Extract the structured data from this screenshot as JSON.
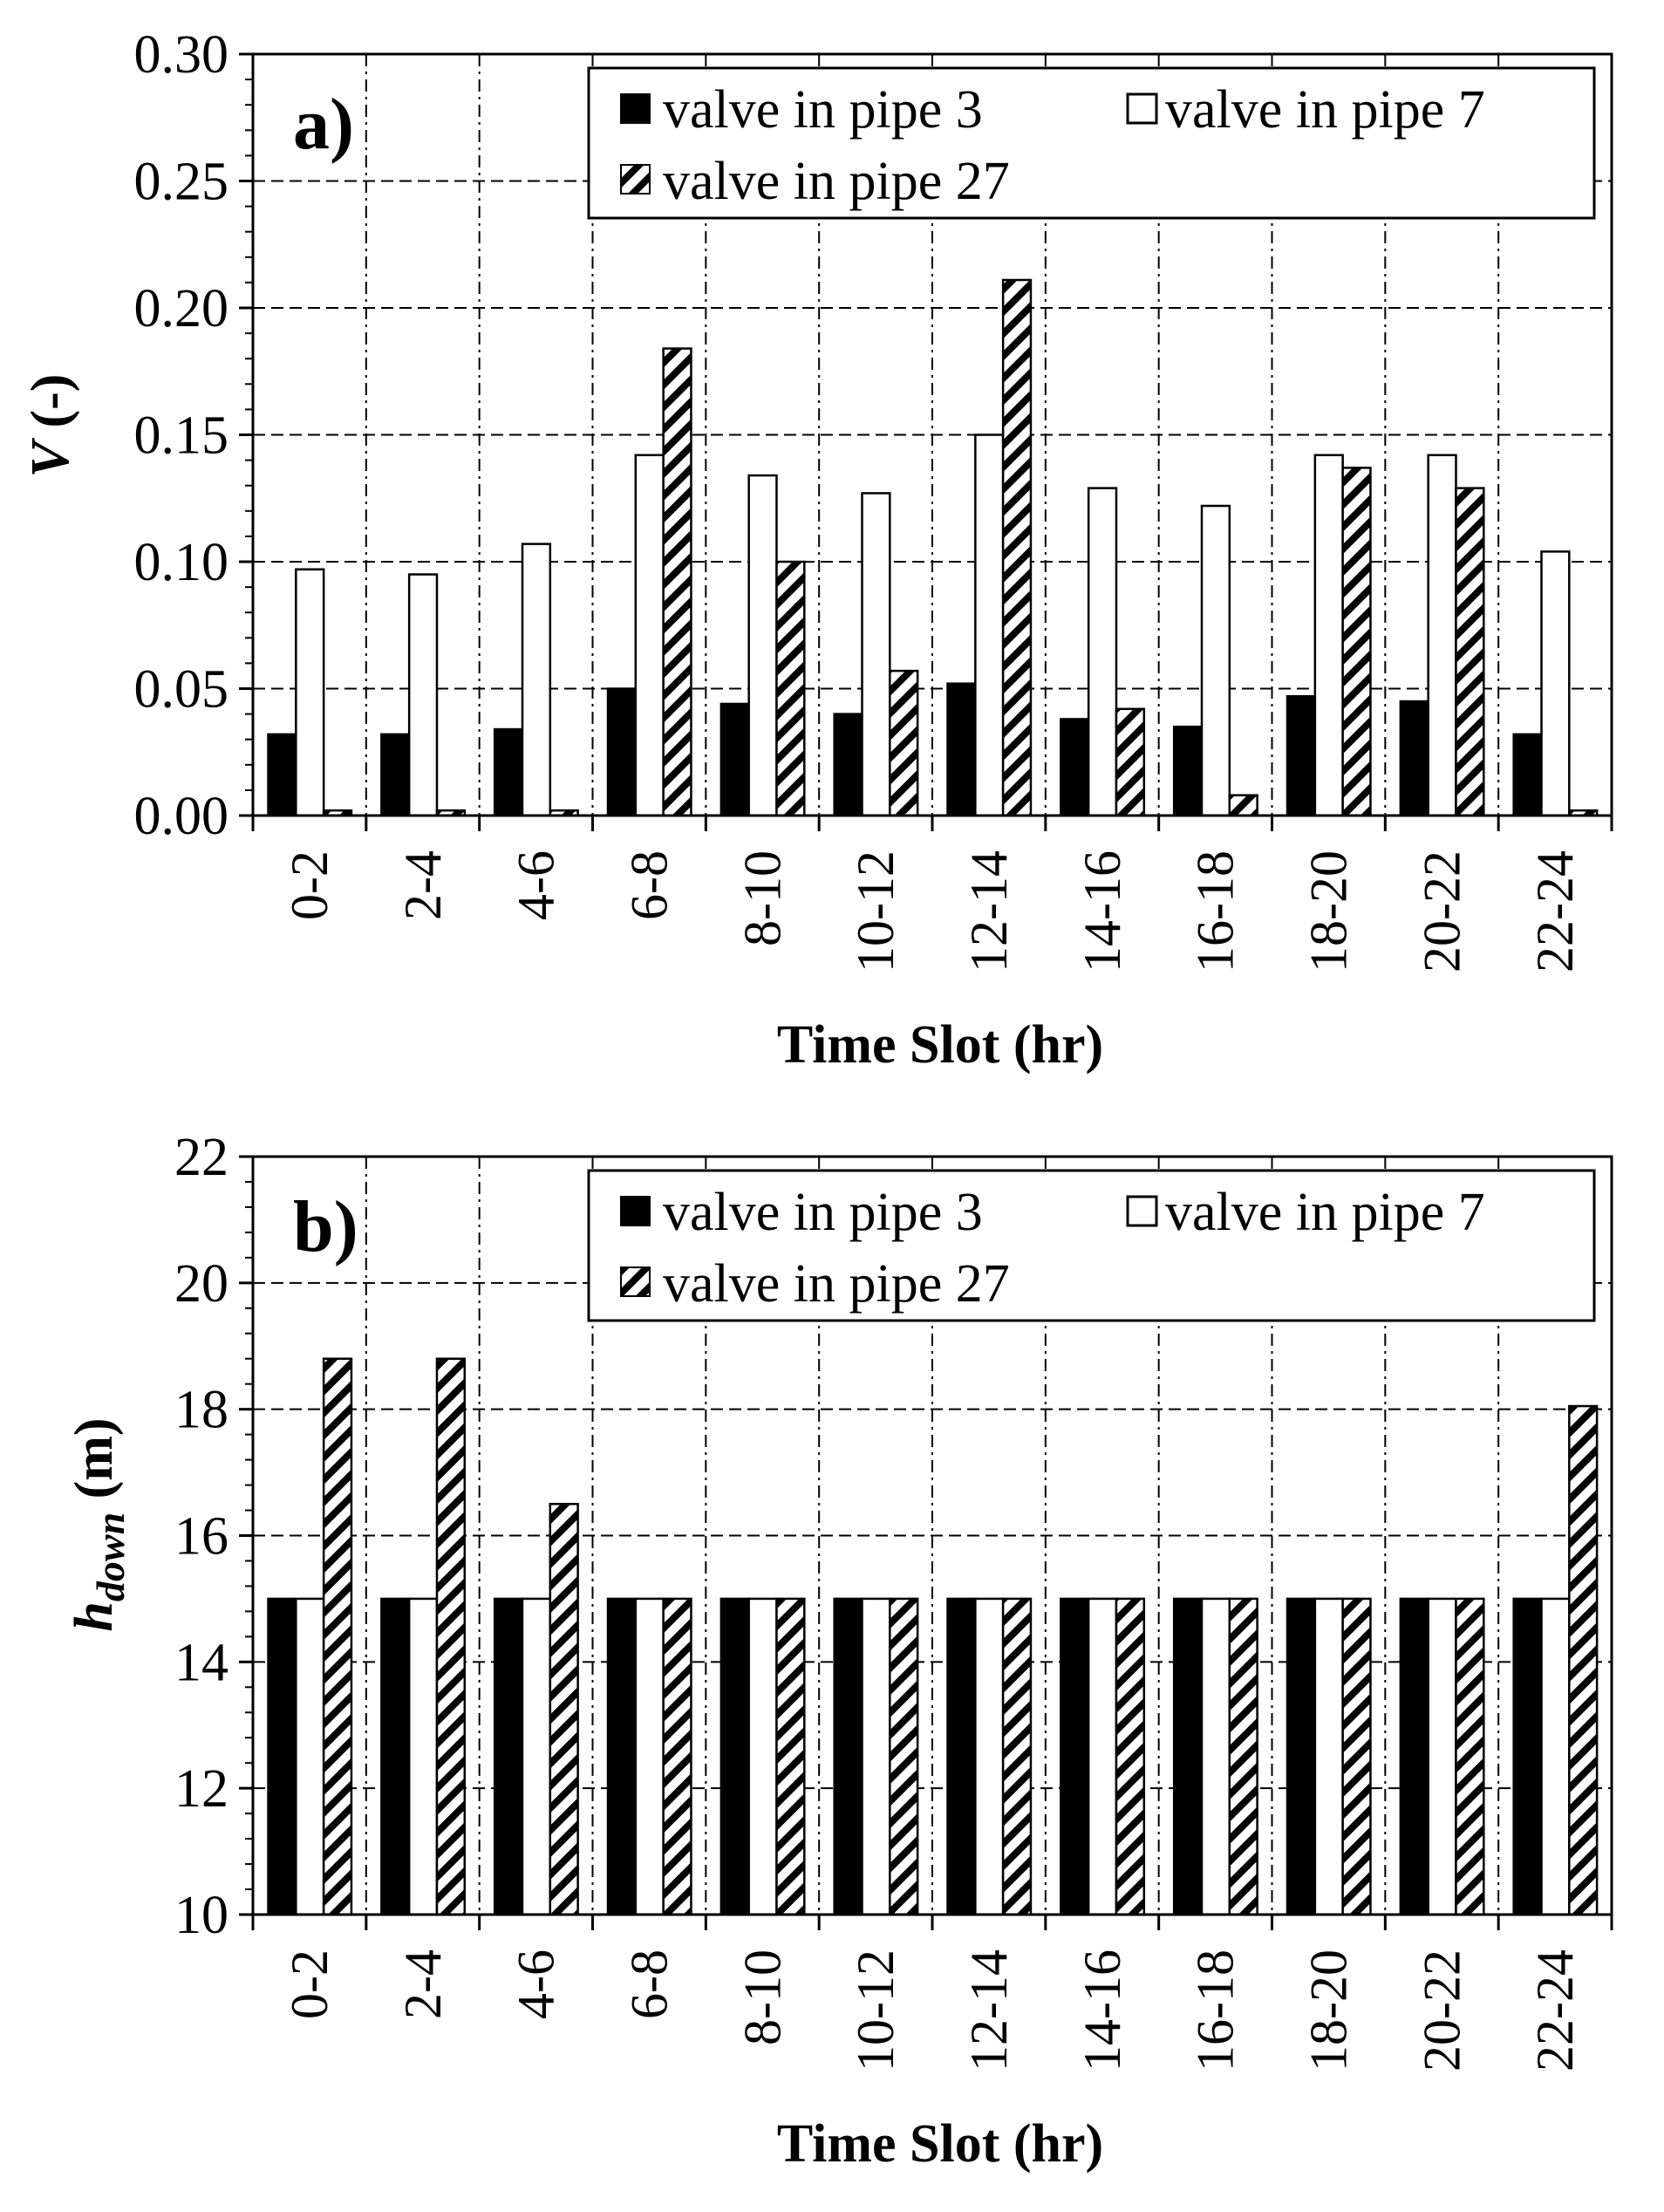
{
  "chart_data": [
    {
      "type": "bar",
      "panel": "a)",
      "xlabel": "Time Slot (hr)",
      "ylabel": {
        "main": "V",
        "rest": " (-)"
      },
      "ylim": [
        0,
        0.3
      ],
      "ytick_step": 0.05,
      "ytick_decimals": 2,
      "grid": true,
      "legend_position": "top-right",
      "categories": [
        "0-2",
        "2-4",
        "4-6",
        "6-8",
        "8-10",
        "10-12",
        "12-14",
        "14-16",
        "16-18",
        "18-20",
        "20-22",
        "22-24"
      ],
      "series": [
        {
          "name": "valve in pipe 3",
          "style": "solid",
          "values": [
            0.032,
            0.032,
            0.034,
            0.05,
            0.044,
            0.04,
            0.052,
            0.038,
            0.035,
            0.047,
            0.045,
            0.032
          ]
        },
        {
          "name": "valve in pipe 7",
          "style": "open",
          "values": [
            0.097,
            0.095,
            0.107,
            0.142,
            0.134,
            0.127,
            0.15,
            0.129,
            0.122,
            0.142,
            0.142,
            0.104
          ]
        },
        {
          "name": "valve in pipe 27",
          "style": "hatched",
          "values": [
            0.002,
            0.002,
            0.002,
            0.184,
            0.1,
            0.057,
            0.211,
            0.042,
            0.008,
            0.137,
            0.129,
            0.002
          ]
        }
      ]
    },
    {
      "type": "bar",
      "panel": "b)",
      "xlabel": "Time Slot (hr)",
      "ylabel": {
        "main": "h",
        "sub": "down",
        "rest": " (m)"
      },
      "ylim": [
        10,
        22
      ],
      "ytick_step": 2,
      "ytick_decimals": 0,
      "grid": true,
      "legend_position": "top-right",
      "categories": [
        "0-2",
        "2-4",
        "4-6",
        "6-8",
        "8-10",
        "10-12",
        "12-14",
        "14-16",
        "16-18",
        "18-20",
        "20-22",
        "22-24"
      ],
      "series": [
        {
          "name": "valve in pipe 3",
          "style": "solid",
          "values": [
            15,
            15,
            15,
            15,
            15,
            15,
            15,
            15,
            15,
            15,
            15,
            15
          ]
        },
        {
          "name": "valve in pipe 7",
          "style": "open",
          "values": [
            15,
            15,
            15,
            15,
            15,
            15,
            15,
            15,
            15,
            15,
            15,
            15
          ]
        },
        {
          "name": "valve in pipe 27",
          "style": "hatched",
          "values": [
            18.8,
            18.8,
            16.5,
            15,
            15,
            15,
            15,
            15,
            15,
            15,
            15,
            18.05
          ]
        }
      ]
    }
  ]
}
